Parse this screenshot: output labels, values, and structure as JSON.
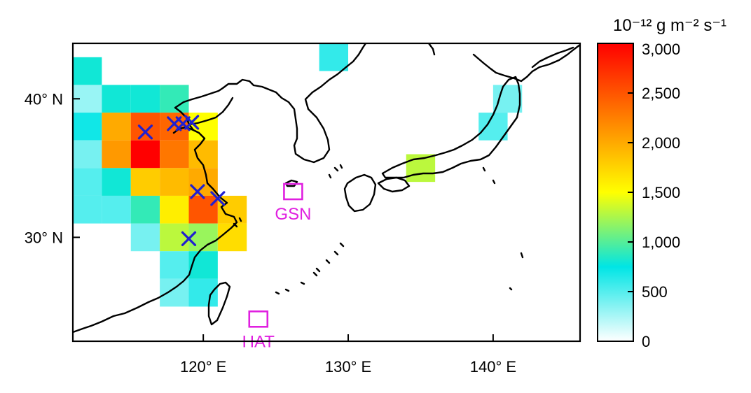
{
  "map": {
    "lat_ticks": [
      {
        "value": 40,
        "label": "40° N"
      },
      {
        "value": 30,
        "label": "30° N"
      }
    ],
    "lon_ticks": [
      {
        "value": 120,
        "label": "120° E"
      },
      {
        "value": 130,
        "label": "130° E"
      },
      {
        "value": 140,
        "label": "140° E"
      }
    ],
    "extent": {
      "lon": [
        111,
        146
      ],
      "lat": [
        22.5,
        44
      ]
    },
    "grid": false
  },
  "colorbar": {
    "unit_label": "10⁻¹² g m⁻² s⁻¹",
    "min": 0,
    "max": 3000,
    "ticks": [
      {
        "value": 3000,
        "label": "3,000"
      },
      {
        "value": 2500,
        "label": "2,500"
      },
      {
        "value": 2000,
        "label": "2,000"
      },
      {
        "value": 1500,
        "label": "1,500"
      },
      {
        "value": 1000,
        "label": "1,000"
      },
      {
        "value": 500,
        "label": "500"
      },
      {
        "value": 0,
        "label": "0"
      }
    ],
    "colormap": [
      "#ffffff",
      "#00e5e5",
      "#ffff00",
      "#ff7f00",
      "#ff0000"
    ]
  },
  "emission_cells": [
    {
      "lon": 112,
      "lat": 42,
      "v": 800
    },
    {
      "lon": 112,
      "lat": 40,
      "v": 300
    },
    {
      "lon": 112,
      "lat": 38,
      "v": 700
    },
    {
      "lon": 112,
      "lat": 36,
      "v": 400
    },
    {
      "lon": 112,
      "lat": 34,
      "v": 500
    },
    {
      "lon": 112,
      "lat": 32,
      "v": 500
    },
    {
      "lon": 114,
      "lat": 40,
      "v": 800
    },
    {
      "lon": 114,
      "lat": 38,
      "v": 2000
    },
    {
      "lon": 114,
      "lat": 36,
      "v": 2100
    },
    {
      "lon": 114,
      "lat": 34,
      "v": 800
    },
    {
      "lon": 114,
      "lat": 32,
      "v": 500
    },
    {
      "lon": 116,
      "lat": 40,
      "v": 800
    },
    {
      "lon": 116,
      "lat": 38,
      "v": 2500
    },
    {
      "lon": 116,
      "lat": 36,
      "v": 3000
    },
    {
      "lon": 116,
      "lat": 34,
      "v": 1800
    },
    {
      "lon": 116,
      "lat": 32,
      "v": 900
    },
    {
      "lon": 116,
      "lat": 30,
      "v": 400
    },
    {
      "lon": 118,
      "lat": 40,
      "v": 900
    },
    {
      "lon": 118,
      "lat": 38,
      "v": 2400
    },
    {
      "lon": 118,
      "lat": 36,
      "v": 2300
    },
    {
      "lon": 118,
      "lat": 34,
      "v": 1900
    },
    {
      "lon": 118,
      "lat": 32,
      "v": 1600
    },
    {
      "lon": 118,
      "lat": 30,
      "v": 1300
    },
    {
      "lon": 118,
      "lat": 28,
      "v": 500
    },
    {
      "lon": 118,
      "lat": 26,
      "v": 400
    },
    {
      "lon": 120,
      "lat": 38,
      "v": 1500
    },
    {
      "lon": 120,
      "lat": 36,
      "v": 1900
    },
    {
      "lon": 120,
      "lat": 34,
      "v": 2000
    },
    {
      "lon": 120,
      "lat": 32,
      "v": 2500
    },
    {
      "lon": 120,
      "lat": 30,
      "v": 1200
    },
    {
      "lon": 120,
      "lat": 28,
      "v": 800
    },
    {
      "lon": 120,
      "lat": 26,
      "v": 600
    },
    {
      "lon": 122,
      "lat": 32,
      "v": 1800
    },
    {
      "lon": 122,
      "lat": 30,
      "v": 1700
    },
    {
      "lon": 129,
      "lat": 43,
      "v": 600
    },
    {
      "lon": 135,
      "lat": 35,
      "v": 1300
    },
    {
      "lon": 140,
      "lat": 38,
      "v": 500
    },
    {
      "lon": 141,
      "lat": 40,
      "v": 400
    }
  ],
  "sources": [
    {
      "lon": 116.0,
      "lat": 37.6
    },
    {
      "lon": 118.0,
      "lat": 38.2
    },
    {
      "lon": 118.6,
      "lat": 38.2
    },
    {
      "lon": 119.2,
      "lat": 38.3
    },
    {
      "lon": 119.6,
      "lat": 33.3
    },
    {
      "lon": 121.0,
      "lat": 32.8
    },
    {
      "lon": 119.0,
      "lat": 29.9
    }
  ],
  "sites": [
    {
      "label": "GSN",
      "lon": 126.2,
      "lat": 33.3,
      "color": "#e020e0"
    },
    {
      "label": "HAT",
      "lon": 123.8,
      "lat": 24.1,
      "color": "#e020e0"
    }
  ],
  "colors": {
    "coastline": "#000000",
    "source_marker": "#2020d0",
    "site": "#e020e0"
  }
}
